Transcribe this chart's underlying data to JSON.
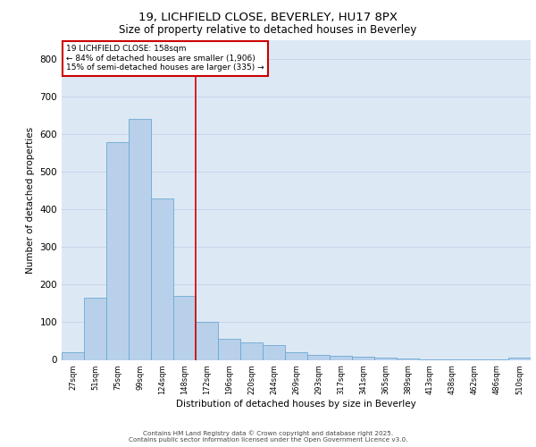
{
  "title_line1": "19, LICHFIELD CLOSE, BEVERLEY, HU17 8PX",
  "title_line2": "Size of property relative to detached houses in Beverley",
  "xlabel": "Distribution of detached houses by size in Beverley",
  "ylabel": "Number of detached properties",
  "categories": [
    "27sqm",
    "51sqm",
    "75sqm",
    "99sqm",
    "124sqm",
    "148sqm",
    "172sqm",
    "196sqm",
    "220sqm",
    "244sqm",
    "269sqm",
    "293sqm",
    "317sqm",
    "341sqm",
    "365sqm",
    "389sqm",
    "413sqm",
    "438sqm",
    "462sqm",
    "486sqm",
    "510sqm"
  ],
  "values": [
    20,
    165,
    580,
    640,
    430,
    170,
    100,
    55,
    47,
    40,
    20,
    13,
    11,
    8,
    5,
    3,
    2,
    2,
    2,
    2,
    5
  ],
  "bar_color": "#b8d0ea",
  "bar_edge_color": "#6aaad4",
  "grid_color": "#c8d4e8",
  "background_color": "#dde8f5",
  "red_line_x": 5.5,
  "red_line_color": "#cc0000",
  "annotation_text": "19 LICHFIELD CLOSE: 158sqm\n← 84% of detached houses are smaller (1,906)\n15% of semi-detached houses are larger (335) →",
  "annotation_box_color": "#cc0000",
  "footer_line1": "Contains HM Land Registry data © Crown copyright and database right 2025.",
  "footer_line2": "Contains public sector information licensed under the Open Government Licence v3.0.",
  "ylim": [
    0,
    850
  ],
  "yticks": [
    0,
    100,
    200,
    300,
    400,
    500,
    600,
    700,
    800
  ]
}
